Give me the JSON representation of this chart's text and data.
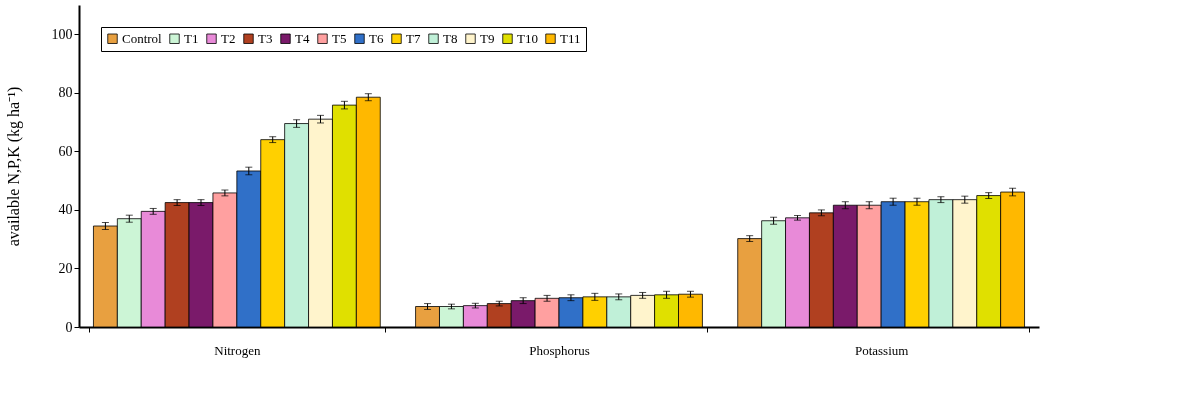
{
  "chart_data": {
    "type": "bar",
    "ylabel": "available N,P,K (kg ha⁻¹)",
    "categories": [
      "Nitrogen",
      "Phosphorus",
      "Potassium"
    ],
    "series": [
      {
        "name": "Control",
        "color": "#e8a040",
        "values": [
          34.5,
          7,
          30.2
        ],
        "errors": [
          1.2,
          1,
          1
        ]
      },
      {
        "name": "T1",
        "color": "#ccf5d6",
        "values": [
          37,
          7,
          36.3
        ],
        "errors": [
          1.2,
          0.8,
          1.2
        ]
      },
      {
        "name": "T2",
        "color": "#e88ad8",
        "values": [
          39.5,
          7.3,
          37.3
        ],
        "errors": [
          1,
          0.8,
          0.8
        ]
      },
      {
        "name": "T3",
        "color": "#b04020",
        "values": [
          42.5,
          8,
          39
        ],
        "errors": [
          1,
          0.8,
          1
        ]
      },
      {
        "name": "T4",
        "color": "#7a1a6a",
        "values": [
          42.5,
          9,
          41.6
        ],
        "errors": [
          1,
          1,
          1.2
        ]
      },
      {
        "name": "T5",
        "color": "#ffa0a0",
        "values": [
          45.8,
          9.8,
          41.6
        ],
        "errors": [
          1,
          1,
          1.2
        ]
      },
      {
        "name": "T6",
        "color": "#3070c8",
        "values": [
          53.3,
          10,
          42.8
        ],
        "errors": [
          1.3,
          1,
          1.2
        ]
      },
      {
        "name": "T7",
        "color": "#ffd000",
        "values": [
          64,
          10.3,
          42.8
        ],
        "errors": [
          1,
          1.2,
          1.2
        ]
      },
      {
        "name": "T8",
        "color": "#c0f0d8",
        "values": [
          69.5,
          10.3,
          43.5
        ],
        "errors": [
          1.3,
          1,
          1
        ]
      },
      {
        "name": "T9",
        "color": "#fff4cc",
        "values": [
          71,
          10.8,
          43.5
        ],
        "errors": [
          1.3,
          1,
          1.2
        ]
      },
      {
        "name": "T10",
        "color": "#e0e000",
        "values": [
          75.8,
          11,
          44.9
        ],
        "errors": [
          1.3,
          1.2,
          1
        ]
      },
      {
        "name": "T11",
        "color": "#ffb800",
        "values": [
          78.5,
          11.2,
          46.1
        ],
        "errors": [
          1.2,
          1,
          1.3
        ]
      }
    ],
    "ylim": [
      0,
      110
    ],
    "yticks": [
      0,
      20,
      40,
      60,
      80,
      100
    ],
    "grid": false,
    "legend": "top left"
  }
}
